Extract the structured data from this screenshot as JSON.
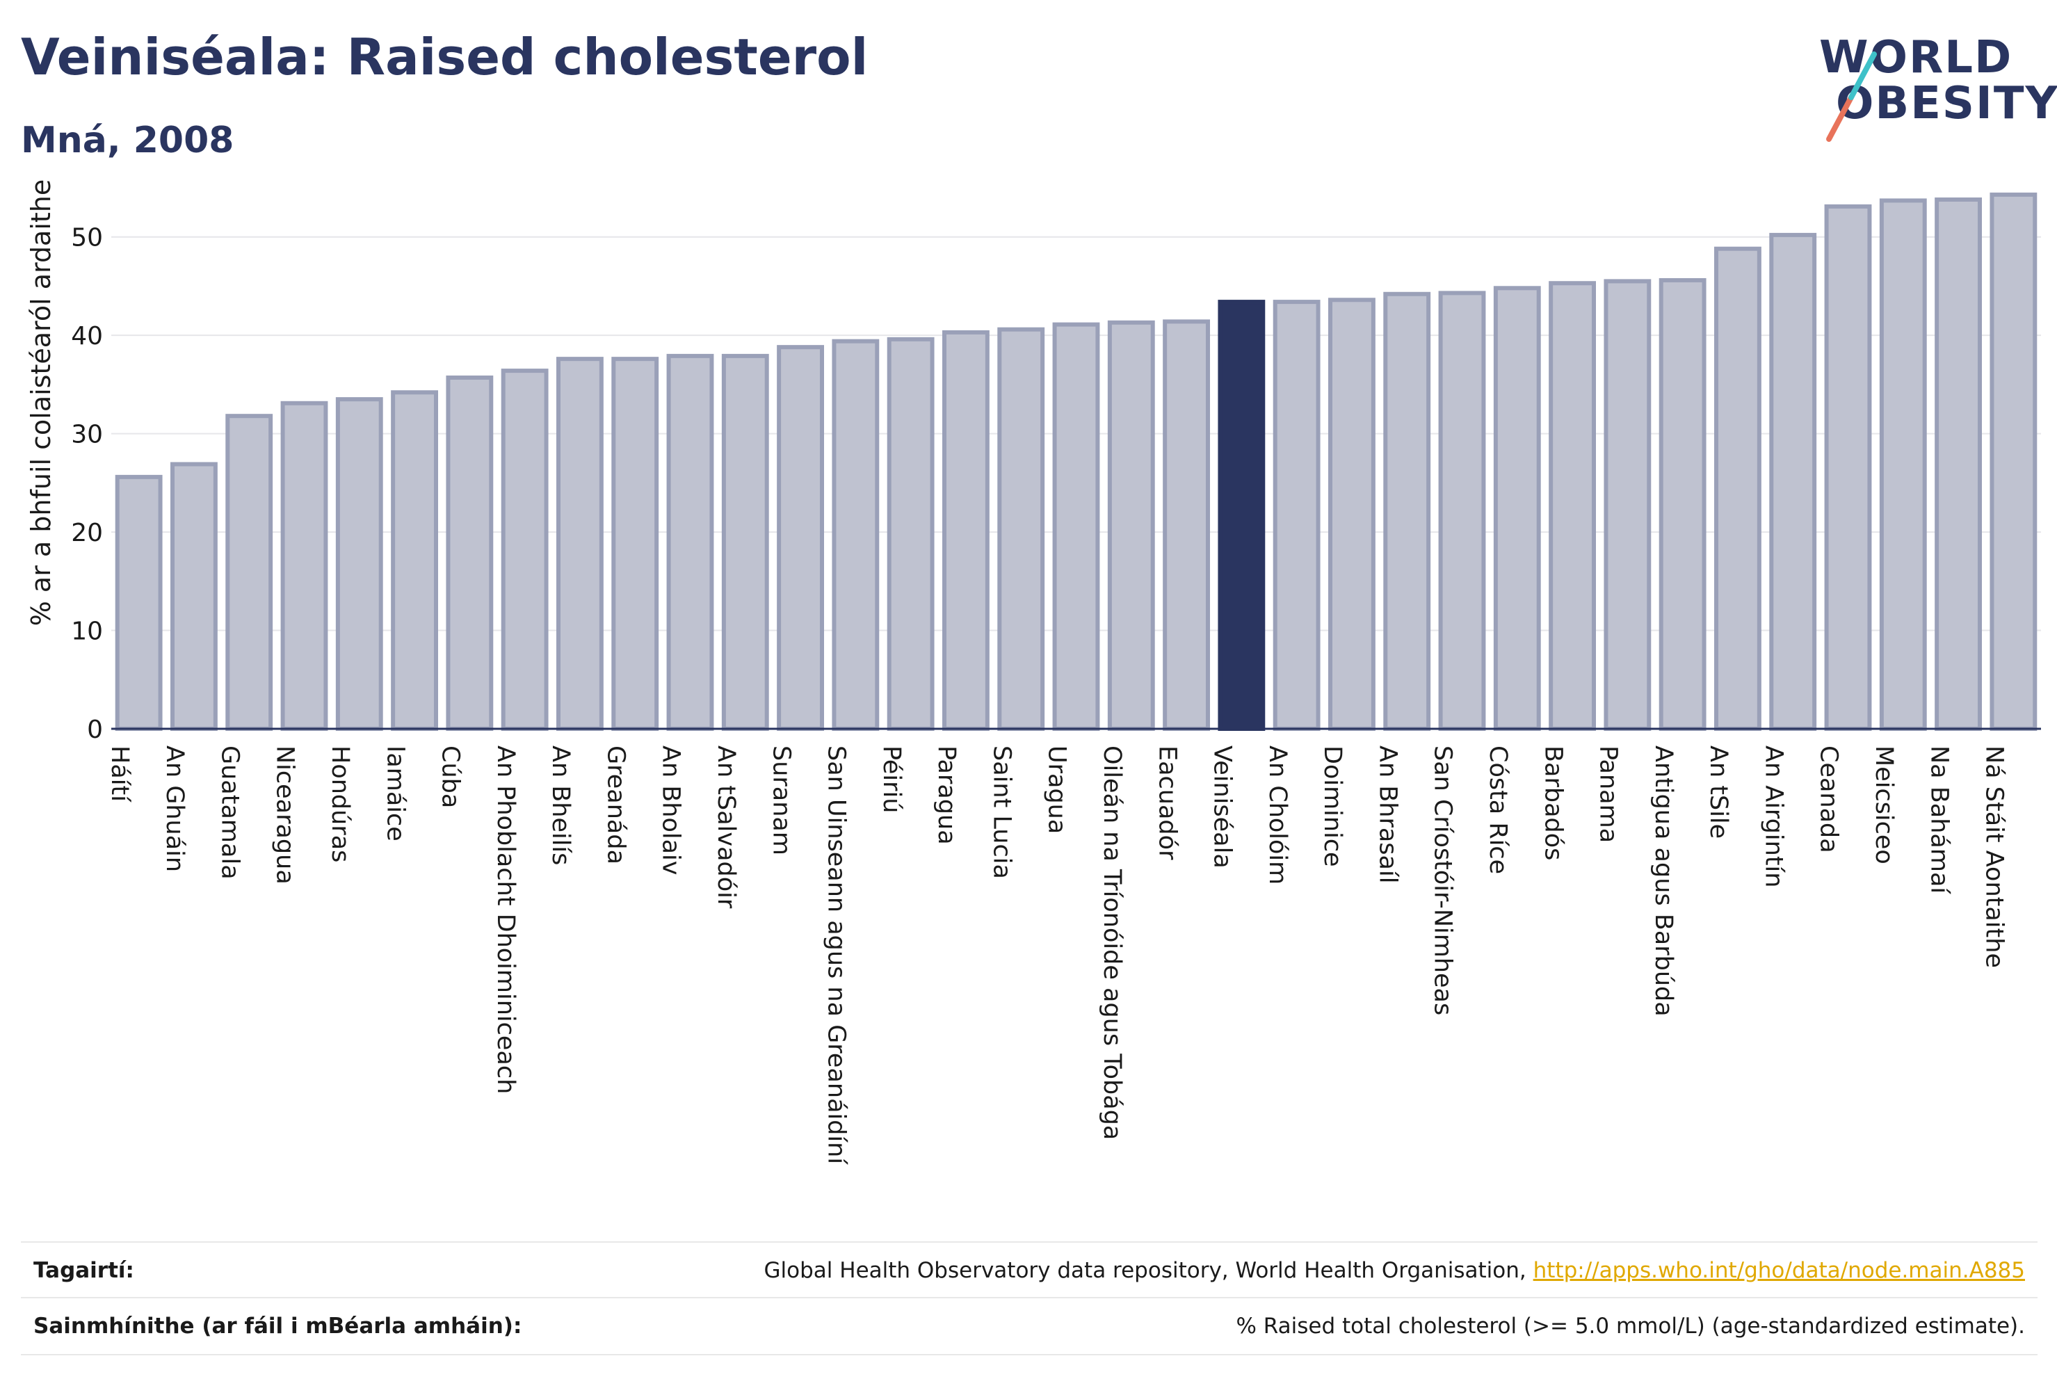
{
  "header": {
    "title": "Veiniséala: Raised cholesterol",
    "subtitle": "Mná, 2008"
  },
  "logo": {
    "line1": "WORLD",
    "line2": "OBESITY",
    "slash_colors": [
      "#e8735a",
      "#3ec1c9"
    ]
  },
  "colors": {
    "bar": "#bfc2d0",
    "bar_border": "#9aa0b8",
    "highlight": "#2a3560",
    "text": "#2a3560"
  },
  "chart_data": {
    "type": "bar",
    "title": "Veiniséala: Raised cholesterol",
    "subtitle": "Mná, 2008",
    "xlabel": "",
    "ylabel": "% ar a bhfuil colaistéaról ardaithe",
    "ylim": [
      0,
      55
    ],
    "yticks": [
      0,
      10,
      20,
      30,
      40,
      50
    ],
    "grid": true,
    "highlight": "Veiniséala",
    "categories": [
      "Háítí",
      "An Ghuáin",
      "Guatamala",
      "Nicearagua",
      "Hondúras",
      "Iamáice",
      "Cúba",
      "An Phoblacht Dhoiminiceach",
      "An Bheilís",
      "Greanáda",
      "An Bholaiv",
      "An tSalvadóir",
      "Suranam",
      "San Uinseann agus na Greanáidíní",
      "Péiriú",
      "Paragua",
      "Saint Lucia",
      "Uragua",
      "Oileán na Tríonóide agus Tobága",
      "Eacuadór",
      "Veiniséala",
      "An Cholóim",
      "Doiminice",
      "An Bhrasaíl",
      "San Críostóir-Nimheas",
      "Cósta Ríce",
      "Barbadós",
      "Panama",
      "Antigua agus Barbúda",
      "An tSile",
      "An Airgintín",
      "Ceanada",
      "Meicsiceo",
      "Na Bahámaí",
      "Ná Stáit Aontaithe"
    ],
    "values": [
      25.6,
      26.9,
      31.8,
      33.1,
      33.5,
      34.2,
      35.7,
      36.4,
      37.6,
      37.6,
      37.9,
      37.9,
      38.8,
      39.4,
      39.6,
      40.3,
      40.6,
      41.1,
      41.3,
      41.4,
      43.4,
      43.4,
      43.6,
      44.2,
      44.3,
      44.8,
      45.3,
      45.5,
      45.6,
      48.8,
      50.2,
      53.1,
      53.7,
      53.8,
      54.3
    ]
  },
  "footer": {
    "references_label": "Tagairtí:",
    "references_text": "Global Health Observatory data repository, World Health Organisation, ",
    "references_link": "http://apps.who.int/gho/data/node.main.A885",
    "definitions_label": "Sainmhínithe (ar fáil i mBéarla amháin):",
    "definitions_text": "% Raised total cholesterol (>= 5.0 mmol/L) (age-standardized estimate)."
  }
}
